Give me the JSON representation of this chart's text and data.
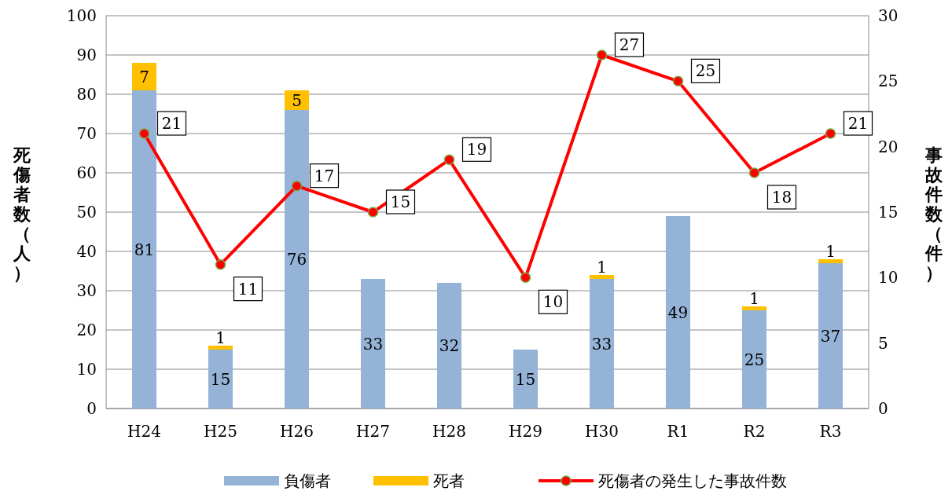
{
  "chart_data": {
    "type": "bar",
    "stacked": true,
    "categories": [
      "H24",
      "H25",
      "H26",
      "H27",
      "H28",
      "H29",
      "H30",
      "R1",
      "R2",
      "R3"
    ],
    "ylabel": "死傷者数（人）",
    "y2label": "事故件数（件）",
    "ylim": [
      0,
      100
    ],
    "yticks": [
      0,
      10,
      20,
      30,
      40,
      50,
      60,
      70,
      80,
      90,
      100
    ],
    "y2lim": [
      0,
      30
    ],
    "y2ticks": [
      0,
      5,
      10,
      15,
      20,
      25,
      30
    ],
    "grid": "y",
    "legend": "bottom",
    "marker": "circle",
    "line_style": "solid",
    "series": [
      {
        "name": "負傷者",
        "color": "#95b3d7",
        "values": [
          81,
          15,
          76,
          33,
          32,
          15,
          33,
          49,
          25,
          37
        ],
        "value_labels": [
          "81",
          "15",
          "76",
          "33",
          "32",
          "15",
          "33",
          "49",
          "25",
          "37"
        ]
      },
      {
        "name": "死者",
        "color": "#ffc000",
        "values": [
          7,
          1,
          5,
          0,
          0,
          0,
          1,
          0,
          1,
          1
        ],
        "value_labels": [
          "7",
          "1",
          "5",
          null,
          null,
          null,
          "1",
          null,
          "1",
          "1"
        ]
      },
      {
        "name": "死傷者の発生した事故件数",
        "type": "line",
        "axis": "y2",
        "color": "#ff0000",
        "values": [
          21,
          11,
          17,
          15,
          19,
          10,
          27,
          25,
          18,
          21
        ],
        "value_labels": [
          "21",
          "11",
          "17",
          "15",
          "19",
          "10",
          "27",
          "25",
          "18",
          "21"
        ]
      }
    ]
  }
}
